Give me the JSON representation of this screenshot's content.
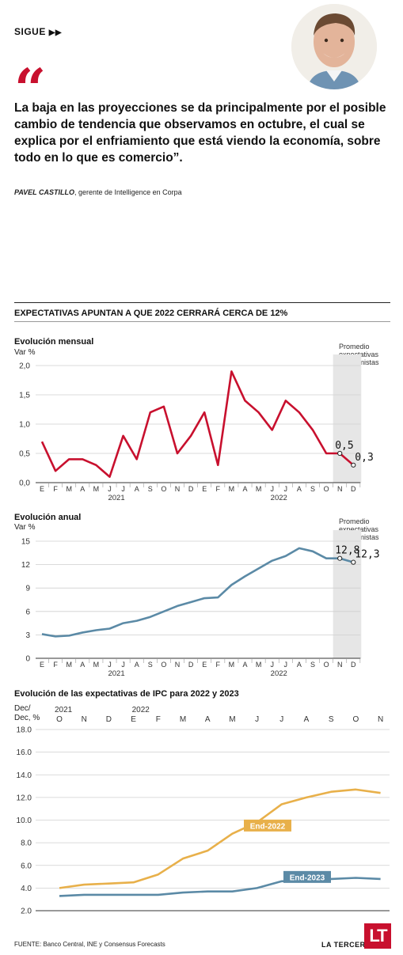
{
  "header": {
    "sigue_label": "SIGUE",
    "sigue_arrows": "▶▶"
  },
  "quote": {
    "mark": "“",
    "text": "La baja en las proyecciones se da principalmente por el posible cambio de tendencia que observamos en octubre, el cual se explica por el enfriamiento que está viendo la economía, sobre todo en lo que es comercio”.",
    "author_name": "PAVEL CASTILLO",
    "author_role": ", gerente de Intelligence en Corpa"
  },
  "section_title": "EXPECTATIVAS APUNTAN A QUE 2022 CERRARÁ CERCA DE 12%",
  "colors": {
    "red": "#c8102e",
    "blue": "#5b8aa6",
    "gold": "#e8b04a",
    "shade": "#e6e6e6"
  },
  "chart_data": [
    {
      "type": "line",
      "title": "Evolución mensual",
      "ylabel": "Var %",
      "ylim": [
        0,
        2.0
      ],
      "yticks": [
        "0,0",
        "0,5",
        "1,0",
        "1,5",
        "2,0"
      ],
      "categories": [
        "E",
        "F",
        "M",
        "A",
        "M",
        "J",
        "J",
        "A",
        "S",
        "O",
        "N",
        "D",
        "E",
        "F",
        "M",
        "A",
        "M",
        "J",
        "J",
        "A",
        "S",
        "O",
        "N",
        "D"
      ],
      "year_labels": [
        "2021",
        "2022"
      ],
      "series": [
        {
          "values": [
            0.7,
            0.2,
            0.4,
            0.4,
            0.3,
            0.1,
            0.8,
            0.4,
            1.2,
            1.3,
            0.5,
            0.8,
            1.2,
            0.3,
            1.9,
            1.4,
            1.2,
            0.9,
            1.4,
            1.2,
            0.9,
            0.5,
            0.5,
            0.3
          ]
        }
      ],
      "annotation": "Promedio expectativas economistas",
      "data_labels": [
        "0,5",
        "0,3"
      ]
    },
    {
      "type": "line",
      "title": "Evolución anual",
      "ylabel": "Var %",
      "ylim": [
        0,
        15
      ],
      "yticks": [
        "0",
        "3",
        "6",
        "9",
        "12",
        "15"
      ],
      "categories": [
        "E",
        "F",
        "M",
        "A",
        "M",
        "J",
        "J",
        "A",
        "S",
        "O",
        "N",
        "D",
        "E",
        "F",
        "M",
        "A",
        "M",
        "J",
        "J",
        "A",
        "S",
        "O",
        "N",
        "D"
      ],
      "year_labels": [
        "2021",
        "2022"
      ],
      "series": [
        {
          "values": [
            3.1,
            2.8,
            2.9,
            3.3,
            3.6,
            3.8,
            4.5,
            4.8,
            5.3,
            6.0,
            6.7,
            7.2,
            7.7,
            7.8,
            9.4,
            10.5,
            11.5,
            12.5,
            13.1,
            14.1,
            13.7,
            12.8,
            12.8,
            12.3
          ]
        }
      ],
      "annotation": "Promedio expectativas economistas",
      "data_labels": [
        "12,8",
        "12,3"
      ]
    },
    {
      "type": "line",
      "title": "Evolución de las expectativas de IPC para 2022 y 2023",
      "ylabel_lines": [
        "Dec/",
        "Dec, %"
      ],
      "ylim": [
        2.0,
        18.0
      ],
      "yticks": [
        "2.0",
        "4.0",
        "6.0",
        "8.0",
        "10.0",
        "12.0",
        "14.0",
        "16.0",
        "18.0"
      ],
      "categories": [
        "O",
        "N",
        "D",
        "E",
        "F",
        "M",
        "A",
        "M",
        "J",
        "J",
        "A",
        "S",
        "O",
        "N"
      ],
      "year_labels": [
        "2021",
        "2022"
      ],
      "series": [
        {
          "name": "End-2022",
          "values": [
            4.0,
            4.3,
            4.4,
            4.5,
            5.2,
            6.6,
            7.3,
            8.8,
            9.8,
            11.4,
            12.0,
            12.5,
            12.7,
            12.4
          ]
        },
        {
          "name": "End-2023",
          "values": [
            3.3,
            3.4,
            3.4,
            3.4,
            3.4,
            3.6,
            3.7,
            3.7,
            4.0,
            4.6,
            4.7,
            4.8,
            4.9,
            4.8
          ]
        }
      ]
    }
  ],
  "footer": {
    "source": "FUENTE: Banco Central, INE y Consensus Forecasts",
    "brand": "LA TERCERA",
    "logo": "LT"
  }
}
